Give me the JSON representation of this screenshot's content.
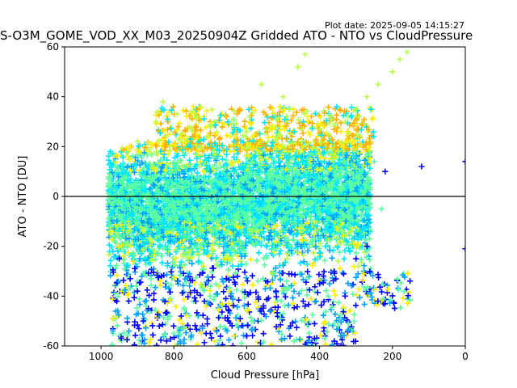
{
  "plot_date": "Plot date: 2025-09-05 14:15:27",
  "chart_data": {
    "type": "scatter",
    "title": "S-O3M_GOME_VOD_XX_M03_20250904Z Gridded ATO - NTO vs CloudPressure",
    "xlabel": "Cloud Pressure [hPa]",
    "ylabel": "ATO - NTO [DU]",
    "xlim": [
      1100,
      0
    ],
    "ylim": [
      -60,
      60
    ],
    "x_reversed": true,
    "xticks": [
      1000,
      800,
      600,
      400,
      200,
      0
    ],
    "yticks": [
      -60,
      -40,
      -20,
      0,
      20,
      40,
      60
    ],
    "grid": false,
    "marker": "plus",
    "reference_line_y": 0,
    "colors": [
      "#0000ff",
      "#00a0ff",
      "#00e5ff",
      "#5cffa0",
      "#b8ff48",
      "#ffee00",
      "#ffb000"
    ],
    "series": [
      {
        "values": [
          {
            "x": 960,
            "y": 10
          },
          {
            "x": 940,
            "y": 5
          },
          {
            "x": 920,
            "y": -5
          },
          {
            "x": 900,
            "y": 2
          },
          {
            "x": 880,
            "y": 8
          },
          {
            "x": 850,
            "y": -10
          },
          {
            "x": 820,
            "y": 4
          },
          {
            "x": 800,
            "y": -2
          },
          {
            "x": 770,
            "y": 12
          },
          {
            "x": 740,
            "y": -15
          },
          {
            "x": 700,
            "y": 6
          },
          {
            "x": 660,
            "y": -8
          },
          {
            "x": 620,
            "y": 3
          },
          {
            "x": 580,
            "y": -12
          },
          {
            "x": 540,
            "y": 9
          },
          {
            "x": 500,
            "y": -6
          },
          {
            "x": 460,
            "y": 1
          },
          {
            "x": 420,
            "y": -18
          },
          {
            "x": 380,
            "y": 7
          },
          {
            "x": 340,
            "y": -3
          },
          {
            "x": 300,
            "y": 11
          },
          {
            "x": 270,
            "y": -22
          },
          {
            "x": 250,
            "y": 14
          },
          {
            "x": 230,
            "y": -5
          }
        ]
      },
      {
        "values": [
          {
            "x": 900,
            "y": 22
          },
          {
            "x": 850,
            "y": 30
          },
          {
            "x": 830,
            "y": 38
          },
          {
            "x": 780,
            "y": 25
          },
          {
            "x": 700,
            "y": 28
          },
          {
            "x": 600,
            "y": 26
          },
          {
            "x": 520,
            "y": 24
          },
          {
            "x": 450,
            "y": 22
          },
          {
            "x": 400,
            "y": 27
          },
          {
            "x": 330,
            "y": 30
          },
          {
            "x": 300,
            "y": 35
          },
          {
            "x": 270,
            "y": 40
          },
          {
            "x": 240,
            "y": 45
          },
          {
            "x": 200,
            "y": 50
          },
          {
            "x": 180,
            "y": 55
          },
          {
            "x": 160,
            "y": 58
          },
          {
            "x": 460,
            "y": 52
          },
          {
            "x": 440,
            "y": 57
          },
          {
            "x": 560,
            "y": 45
          },
          {
            "x": 500,
            "y": 40
          }
        ]
      },
      {
        "values": [
          {
            "x": 950,
            "y": -25
          },
          {
            "x": 920,
            "y": -33
          },
          {
            "x": 900,
            "y": -38
          },
          {
            "x": 870,
            "y": -45
          },
          {
            "x": 840,
            "y": -52
          },
          {
            "x": 820,
            "y": -58
          },
          {
            "x": 780,
            "y": -48
          },
          {
            "x": 740,
            "y": -42
          },
          {
            "x": 700,
            "y": -55
          },
          {
            "x": 650,
            "y": -50
          },
          {
            "x": 600,
            "y": -56
          },
          {
            "x": 560,
            "y": -46
          },
          {
            "x": 520,
            "y": -38
          },
          {
            "x": 480,
            "y": -52
          },
          {
            "x": 440,
            "y": -44
          },
          {
            "x": 400,
            "y": -35
          },
          {
            "x": 360,
            "y": -30
          },
          {
            "x": 330,
            "y": -40
          },
          {
            "x": 300,
            "y": -25
          },
          {
            "x": 270,
            "y": -20
          },
          {
            "x": 240,
            "y": -42
          },
          {
            "x": 220,
            "y": 10
          },
          {
            "x": 120,
            "y": 12
          },
          {
            "x": 0,
            "y": 14
          },
          {
            "x": 0,
            "y": -21
          }
        ]
      }
    ]
  }
}
